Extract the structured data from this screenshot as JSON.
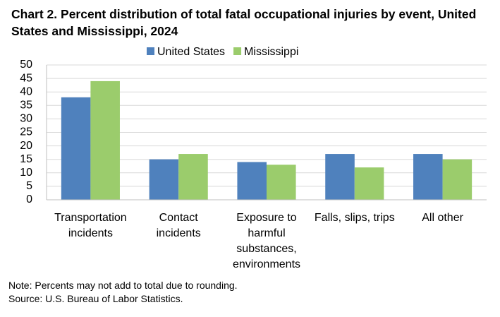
{
  "chart_data": {
    "type": "bar",
    "title": "Chart 2. Percent distribution of total fatal occupational injuries by event, United States and Mississippi,  2024",
    "categories": [
      "Transportation incidents",
      "Contact incidents",
      "Exposure to harmful substances, environments",
      "Falls, slips, trips",
      "All other"
    ],
    "series": [
      {
        "name": "United States",
        "color": "#4f81bd",
        "values": [
          38,
          15,
          14,
          17,
          17
        ]
      },
      {
        "name": "Mississippi",
        "color": "#9bcc6c",
        "values": [
          44,
          17,
          13,
          12,
          15
        ]
      }
    ],
    "ylim": [
      0,
      50
    ],
    "yticks": [
      0,
      5,
      10,
      15,
      20,
      25,
      30,
      35,
      40,
      45,
      50
    ],
    "grid": true,
    "legend": "top",
    "notes": [
      "Note: Percents may not add to total due to rounding.",
      "Source: U.S. Bureau of Labor Statistics."
    ]
  }
}
